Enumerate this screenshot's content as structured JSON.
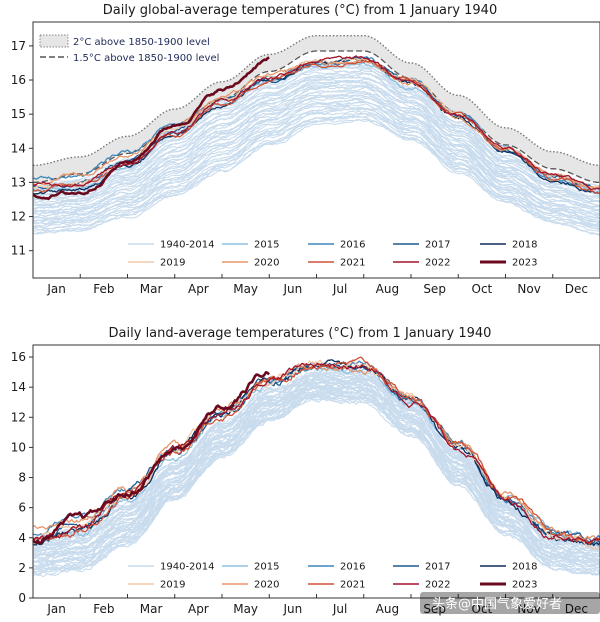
{
  "chart_data": [
    {
      "type": "line",
      "title": "Daily global-average temperatures (°C) from 1 January 1940",
      "xlabel": "",
      "ylabel": "",
      "ylim": [
        10.2,
        17.7
      ],
      "yticks": [
        11,
        12,
        13,
        14,
        15,
        16,
        17
      ],
      "months": [
        "Jan",
        "Feb",
        "Mar",
        "Apr",
        "May",
        "Jun",
        "Jul",
        "Aug",
        "Sep",
        "Oct",
        "Nov",
        "Dec"
      ],
      "grid": false,
      "reference_bands": [
        {
          "name": "2°C above 1850-1900 level",
          "style": "dotted band",
          "values": [
            13.5,
            13.75,
            14.35,
            15.15,
            15.95,
            16.75,
            17.3,
            17.3,
            16.5,
            15.55,
            14.6,
            13.9,
            13.5
          ]
        },
        {
          "name": "1.5°C above 1850-1900 level",
          "style": "dashed",
          "values": [
            13.0,
            13.25,
            13.85,
            14.65,
            15.45,
            16.25,
            16.85,
            16.85,
            16.05,
            15.05,
            14.1,
            13.4,
            13.0
          ]
        }
      ],
      "climatology_band": {
        "name": "1940-2014",
        "color": "#c9dcee",
        "lower": [
          11.5,
          11.6,
          12.0,
          12.6,
          13.3,
          14.1,
          14.7,
          14.8,
          14.2,
          13.3,
          12.4,
          11.8,
          11.5
        ],
        "upper": [
          13.0,
          13.1,
          13.7,
          14.6,
          15.4,
          16.0,
          16.5,
          16.5,
          15.8,
          14.8,
          13.8,
          13.2,
          12.9
        ]
      },
      "series": [
        {
          "name": "2015",
          "color": "#8ec0e0",
          "values": [
            12.8,
            12.9,
            13.5,
            14.5,
            15.3,
            15.9,
            16.4,
            16.5,
            15.8,
            15.0,
            14.0,
            13.2,
            12.8
          ]
        },
        {
          "name": "2016",
          "color": "#3f86bc",
          "values": [
            13.1,
            13.2,
            13.9,
            14.7,
            15.5,
            16.1,
            16.5,
            16.6,
            16.0,
            15.0,
            13.9,
            13.1,
            12.9
          ]
        },
        {
          "name": "2017",
          "color": "#1d5a93",
          "values": [
            12.9,
            13.0,
            13.6,
            14.5,
            15.4,
            16.0,
            16.5,
            16.6,
            15.9,
            15.0,
            14.0,
            13.2,
            12.8
          ]
        },
        {
          "name": "2018",
          "color": "#0d2f5c",
          "values": [
            12.7,
            12.8,
            13.5,
            14.4,
            15.3,
            16.0,
            16.5,
            16.6,
            15.9,
            14.9,
            13.9,
            13.1,
            12.7
          ]
        },
        {
          "name": "2019",
          "color": "#f2c9a8",
          "values": [
            12.9,
            13.0,
            13.6,
            14.6,
            15.4,
            16.1,
            16.6,
            16.6,
            16.0,
            15.0,
            14.0,
            13.2,
            12.9
          ]
        },
        {
          "name": "2020",
          "color": "#e59569",
          "values": [
            13.0,
            13.2,
            13.8,
            14.7,
            15.5,
            16.1,
            16.5,
            16.5,
            15.9,
            14.9,
            14.0,
            13.2,
            12.8
          ]
        },
        {
          "name": "2021",
          "color": "#cf5237",
          "values": [
            12.8,
            12.9,
            13.5,
            14.4,
            15.3,
            16.0,
            16.5,
            16.6,
            16.0,
            15.0,
            14.0,
            13.1,
            12.7
          ]
        },
        {
          "name": "2022",
          "color": "#a2152c",
          "values": [
            12.9,
            13.0,
            13.6,
            14.5,
            15.4,
            16.1,
            16.6,
            16.6,
            15.9,
            15.0,
            14.0,
            13.2,
            12.8
          ]
        },
        {
          "name": "2023",
          "color": "#6b0a1e",
          "values": [
            12.6,
            12.7,
            13.6,
            14.7,
            15.7,
            16.6,
            null,
            null,
            null,
            null,
            null,
            null,
            null
          ]
        }
      ],
      "legend": [
        "1940-2014",
        "2015",
        "2016",
        "2017",
        "2018",
        "2019",
        "2020",
        "2021",
        "2022",
        "2023"
      ],
      "legend_position": "bottom-center"
    },
    {
      "type": "line",
      "title": "Daily land-average temperatures (°C) from 1 January 1940",
      "xlabel": "",
      "ylabel": "",
      "ylim": [
        0,
        16.8
      ],
      "yticks": [
        0,
        2,
        4,
        6,
        8,
        10,
        12,
        14,
        16
      ],
      "months": [
        "Jan",
        "Feb",
        "Mar",
        "Apr",
        "May",
        "Jun",
        "Jul",
        "Aug",
        "Sep",
        "Oct",
        "Nov",
        "Dec"
      ],
      "grid": false,
      "climatology_band": {
        "name": "1940-2014",
        "color": "#c9dcee",
        "lower": [
          1.5,
          1.8,
          3.5,
          6.5,
          9.3,
          11.8,
          13.2,
          13.0,
          10.8,
          7.5,
          4.3,
          2.0,
          1.5
        ],
        "upper": [
          4.0,
          4.5,
          6.3,
          9.0,
          11.7,
          13.8,
          15.0,
          15.0,
          13.0,
          9.8,
          6.5,
          4.2,
          3.8
        ]
      },
      "series": [
        {
          "name": "2015",
          "color": "#8ec0e0",
          "values": [
            3.8,
            4.5,
            6.5,
            9.5,
            12.2,
            14.2,
            15.2,
            15.1,
            13.0,
            10.2,
            6.8,
            4.4,
            3.6
          ]
        },
        {
          "name": "2016",
          "color": "#3f86bc",
          "values": [
            4.2,
            5.3,
            7.2,
            10.0,
            12.4,
            14.5,
            15.3,
            15.3,
            13.3,
            10.3,
            6.8,
            4.4,
            3.8
          ]
        },
        {
          "name": "2017",
          "color": "#1d5a93",
          "values": [
            3.9,
            4.9,
            7.0,
            9.7,
            12.3,
            14.4,
            15.4,
            15.2,
            13.2,
            10.1,
            6.8,
            4.3,
            3.7
          ]
        },
        {
          "name": "2018",
          "color": "#0d2f5c",
          "values": [
            3.6,
            4.4,
            6.5,
            9.8,
            12.4,
            14.4,
            15.5,
            15.3,
            13.1,
            10.0,
            6.6,
            4.1,
            3.5
          ]
        },
        {
          "name": "2019",
          "color": "#f2c9a8",
          "values": [
            4.0,
            4.7,
            7.0,
            9.8,
            12.3,
            14.6,
            15.5,
            15.3,
            13.3,
            10.2,
            6.7,
            4.2,
            3.8
          ]
        },
        {
          "name": "2020",
          "color": "#e59569",
          "values": [
            4.8,
            5.0,
            7.2,
            10.0,
            12.6,
            14.5,
            15.4,
            15.3,
            13.2,
            10.3,
            6.9,
            4.5,
            3.9
          ]
        },
        {
          "name": "2021",
          "color": "#cf5237",
          "values": [
            3.8,
            4.5,
            6.8,
            9.6,
            12.2,
            14.4,
            15.6,
            15.5,
            13.3,
            10.3,
            6.9,
            4.2,
            3.6
          ]
        },
        {
          "name": "2022",
          "color": "#a2152c",
          "values": [
            3.9,
            4.6,
            7.0,
            9.9,
            12.4,
            14.6,
            15.6,
            15.3,
            13.2,
            10.1,
            6.8,
            4.3,
            3.8
          ]
        },
        {
          "name": "2023",
          "color": "#6b0a1e",
          "values": [
            3.8,
            5.2,
            6.9,
            9.8,
            12.6,
            15.0,
            null,
            null,
            null,
            null,
            null,
            null,
            null
          ]
        }
      ],
      "legend": [
        "1940-2014",
        "2015",
        "2016",
        "2017",
        "2018",
        "2019",
        "2020",
        "2021",
        "2022",
        "2023"
      ],
      "legend_position": "bottom-center"
    }
  ],
  "watermark": "头条@中国气象爱好者"
}
